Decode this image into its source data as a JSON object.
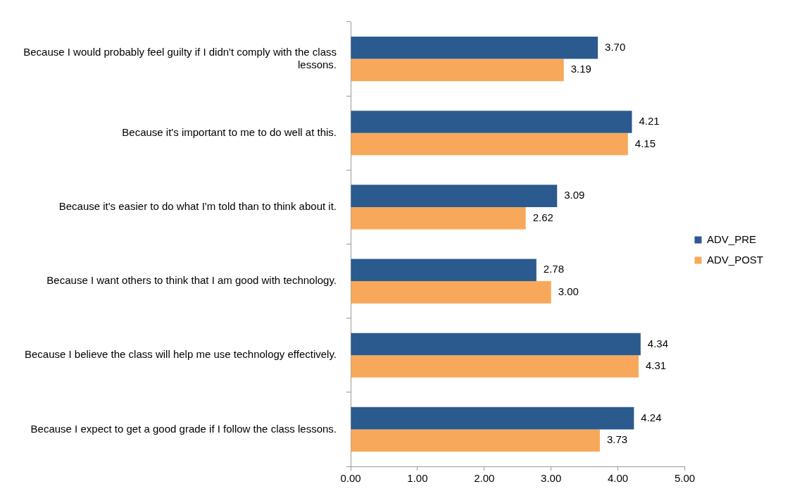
{
  "chart_data": {
    "type": "bar",
    "orientation": "horizontal",
    "categories": [
      "Because I would probably feel guilty if I didn't comply with the class lessons.",
      "Because it's important to me to do well at this.",
      "Because it's easier to do what I'm told than to think about it.",
      "Because I want others to think that I am good with technology.",
      "Because I believe the class will help me use technology effectively.",
      "Because I expect to get a good grade if I follow the class lessons."
    ],
    "series": [
      {
        "name": "ADV_PRE",
        "color": "#2a5a8e",
        "values": [
          3.7,
          4.21,
          3.09,
          2.78,
          4.34,
          4.24
        ],
        "value_labels": [
          "3.70",
          "4.21",
          "3.09",
          "2.78",
          "4.34",
          "4.24"
        ]
      },
      {
        "name": "ADV_POST",
        "color": "#f8a85a",
        "values": [
          3.19,
          4.15,
          2.62,
          3.0,
          4.31,
          3.73
        ],
        "value_labels": [
          "3.19",
          "4.15",
          "2.62",
          "3.00",
          "4.31",
          "3.73"
        ]
      }
    ],
    "xlim": [
      0,
      5
    ],
    "xticks": [
      {
        "value": 0,
        "label": "0.00"
      },
      {
        "value": 1,
        "label": "1.00"
      },
      {
        "value": 2,
        "label": "2.00"
      },
      {
        "value": 3,
        "label": "3.00"
      },
      {
        "value": 4,
        "label": "4.00"
      },
      {
        "value": 5,
        "label": "5.00"
      }
    ],
    "grid": false,
    "legend": "right"
  }
}
